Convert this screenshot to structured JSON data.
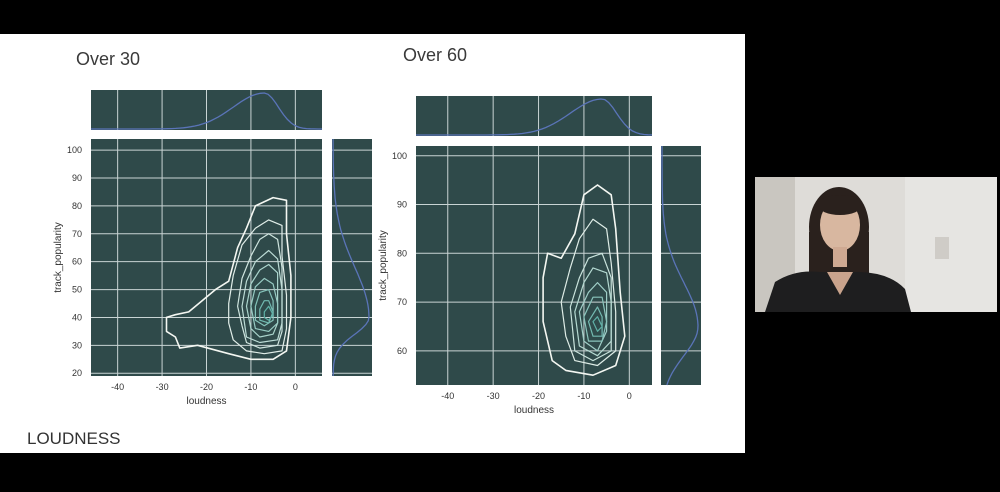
{
  "slide": {
    "footer_label": "LOUDNESS",
    "panels": [
      {
        "title": "Over 30"
      },
      {
        "title": "Over 60"
      }
    ]
  },
  "colors": {
    "plot_bg": "#2f4a4a",
    "grid": "#c9d4d4",
    "marginal_line": "#5a74b8",
    "contour_outer": "#f4f7f2",
    "contour_inner": "#5fb0a6"
  },
  "chart_data": [
    {
      "type": "kde-joint",
      "title": "Over 30",
      "xlabel": "loudness",
      "ylabel": "track_popularity",
      "xlim": [
        -46,
        6
      ],
      "ylim": [
        19,
        104
      ],
      "xticks": [
        -40,
        -30,
        -20,
        -10,
        0
      ],
      "yticks": [
        20,
        30,
        40,
        50,
        60,
        70,
        80,
        90,
        100
      ],
      "grid": true,
      "x_marginal_peak": -7,
      "contours": [
        [
          [
            -29,
            40
          ],
          [
            -27,
            41
          ],
          [
            -24,
            42
          ],
          [
            -21,
            46
          ],
          [
            -18,
            50
          ],
          [
            -15,
            53
          ],
          [
            -13,
            65
          ],
          [
            -11,
            72
          ],
          [
            -9,
            80
          ],
          [
            -5,
            83
          ],
          [
            -2,
            82
          ],
          [
            -2,
            70
          ],
          [
            -1,
            55
          ],
          [
            -1,
            40
          ],
          [
            -2,
            28
          ],
          [
            -5,
            25
          ],
          [
            -10,
            25
          ],
          [
            -15,
            27
          ],
          [
            -22,
            30
          ],
          [
            -26,
            29
          ],
          [
            -27,
            33
          ],
          [
            -29,
            35
          ]
        ],
        [
          [
            -15,
            45
          ],
          [
            -14,
            55
          ],
          [
            -12,
            66
          ],
          [
            -9,
            72
          ],
          [
            -6,
            75
          ],
          [
            -3,
            73
          ],
          [
            -3,
            62
          ],
          [
            -2,
            48
          ],
          [
            -2,
            36
          ],
          [
            -3,
            28
          ],
          [
            -7,
            27
          ],
          [
            -11,
            28
          ],
          [
            -14,
            32
          ],
          [
            -15,
            38
          ]
        ],
        [
          [
            -13,
            44
          ],
          [
            -12,
            54
          ],
          [
            -10,
            62
          ],
          [
            -8,
            68
          ],
          [
            -6,
            70
          ],
          [
            -4,
            68
          ],
          [
            -3,
            58
          ],
          [
            -3,
            45
          ],
          [
            -3,
            35
          ],
          [
            -4,
            30
          ],
          [
            -8,
            29
          ],
          [
            -11,
            31
          ],
          [
            -12,
            37
          ]
        ],
        [
          [
            -12,
            44
          ],
          [
            -11,
            53
          ],
          [
            -9,
            60
          ],
          [
            -6,
            64
          ],
          [
            -4,
            61
          ],
          [
            -3,
            50
          ],
          [
            -3,
            38
          ],
          [
            -4,
            32
          ],
          [
            -8,
            31
          ],
          [
            -11,
            33
          ]
        ],
        [
          [
            -11,
            44
          ],
          [
            -10,
            52
          ],
          [
            -8,
            57
          ],
          [
            -6,
            59
          ],
          [
            -4,
            56
          ],
          [
            -4,
            47
          ],
          [
            -4,
            38
          ],
          [
            -5,
            34
          ],
          [
            -8,
            33
          ],
          [
            -10,
            36
          ]
        ],
        [
          [
            -10,
            44
          ],
          [
            -9,
            51
          ],
          [
            -7,
            54
          ],
          [
            -5,
            52
          ],
          [
            -4,
            45
          ],
          [
            -4,
            38
          ],
          [
            -6,
            35
          ],
          [
            -9,
            36
          ]
        ],
        [
          [
            -9,
            44
          ],
          [
            -8,
            49
          ],
          [
            -6,
            50
          ],
          [
            -5,
            46
          ],
          [
            -5,
            39
          ],
          [
            -7,
            37
          ],
          [
            -9,
            39
          ]
        ],
        [
          [
            -8,
            43
          ],
          [
            -7,
            46
          ],
          [
            -6,
            46
          ],
          [
            -5,
            42
          ],
          [
            -6,
            38
          ],
          [
            -8,
            39
          ]
        ],
        [
          [
            -7,
            42
          ],
          [
            -6,
            44
          ],
          [
            -5,
            41
          ],
          [
            -6,
            39
          ],
          [
            -7,
            40
          ]
        ]
      ]
    },
    {
      "type": "kde-joint",
      "title": "Over 60",
      "xlabel": "loudness",
      "ylabel": "track_popularity",
      "xlim": [
        -47,
        5
      ],
      "ylim": [
        53,
        102
      ],
      "xticks": [
        -40,
        -30,
        -20,
        -10,
        0
      ],
      "yticks": [
        60,
        70,
        80,
        90,
        100
      ],
      "grid": true,
      "x_marginal_peak": -6,
      "contours": [
        [
          [
            -18,
            80
          ],
          [
            -15,
            79
          ],
          [
            -12,
            84
          ],
          [
            -10,
            92
          ],
          [
            -7,
            94
          ],
          [
            -4,
            92
          ],
          [
            -3,
            85
          ],
          [
            -2,
            72
          ],
          [
            -1,
            63
          ],
          [
            -3,
            57
          ],
          [
            -8,
            55
          ],
          [
            -14,
            56
          ],
          [
            -17,
            58
          ],
          [
            -19,
            66
          ],
          [
            -19,
            75
          ]
        ],
        [
          [
            -15,
            70
          ],
          [
            -13,
            77
          ],
          [
            -11,
            83
          ],
          [
            -8,
            87
          ],
          [
            -5,
            85
          ],
          [
            -4,
            78
          ],
          [
            -3,
            68
          ],
          [
            -3,
            60
          ],
          [
            -7,
            57
          ],
          [
            -12,
            58
          ],
          [
            -14,
            63
          ]
        ],
        [
          [
            -13,
            69
          ],
          [
            -11,
            75
          ],
          [
            -9,
            79
          ],
          [
            -6,
            80
          ],
          [
            -4,
            75
          ],
          [
            -4,
            66
          ],
          [
            -4,
            60
          ],
          [
            -8,
            58
          ],
          [
            -12,
            60
          ]
        ],
        [
          [
            -12,
            68
          ],
          [
            -10,
            74
          ],
          [
            -8,
            77
          ],
          [
            -5,
            76
          ],
          [
            -4,
            70
          ],
          [
            -4,
            62
          ],
          [
            -7,
            59
          ],
          [
            -11,
            61
          ]
        ],
        [
          [
            -11,
            68
          ],
          [
            -9,
            72
          ],
          [
            -7,
            74
          ],
          [
            -5,
            72
          ],
          [
            -5,
            64
          ],
          [
            -7,
            60
          ],
          [
            -10,
            62
          ]
        ],
        [
          [
            -10,
            67
          ],
          [
            -8,
            71
          ],
          [
            -6,
            71
          ],
          [
            -5,
            66
          ],
          [
            -6,
            62
          ],
          [
            -9,
            62
          ]
        ],
        [
          [
            -9,
            66
          ],
          [
            -7,
            69
          ],
          [
            -6,
            67
          ],
          [
            -6,
            63
          ],
          [
            -8,
            63
          ]
        ],
        [
          [
            -8,
            66
          ],
          [
            -7,
            67
          ],
          [
            -6,
            65
          ],
          [
            -7,
            64
          ]
        ]
      ]
    }
  ]
}
